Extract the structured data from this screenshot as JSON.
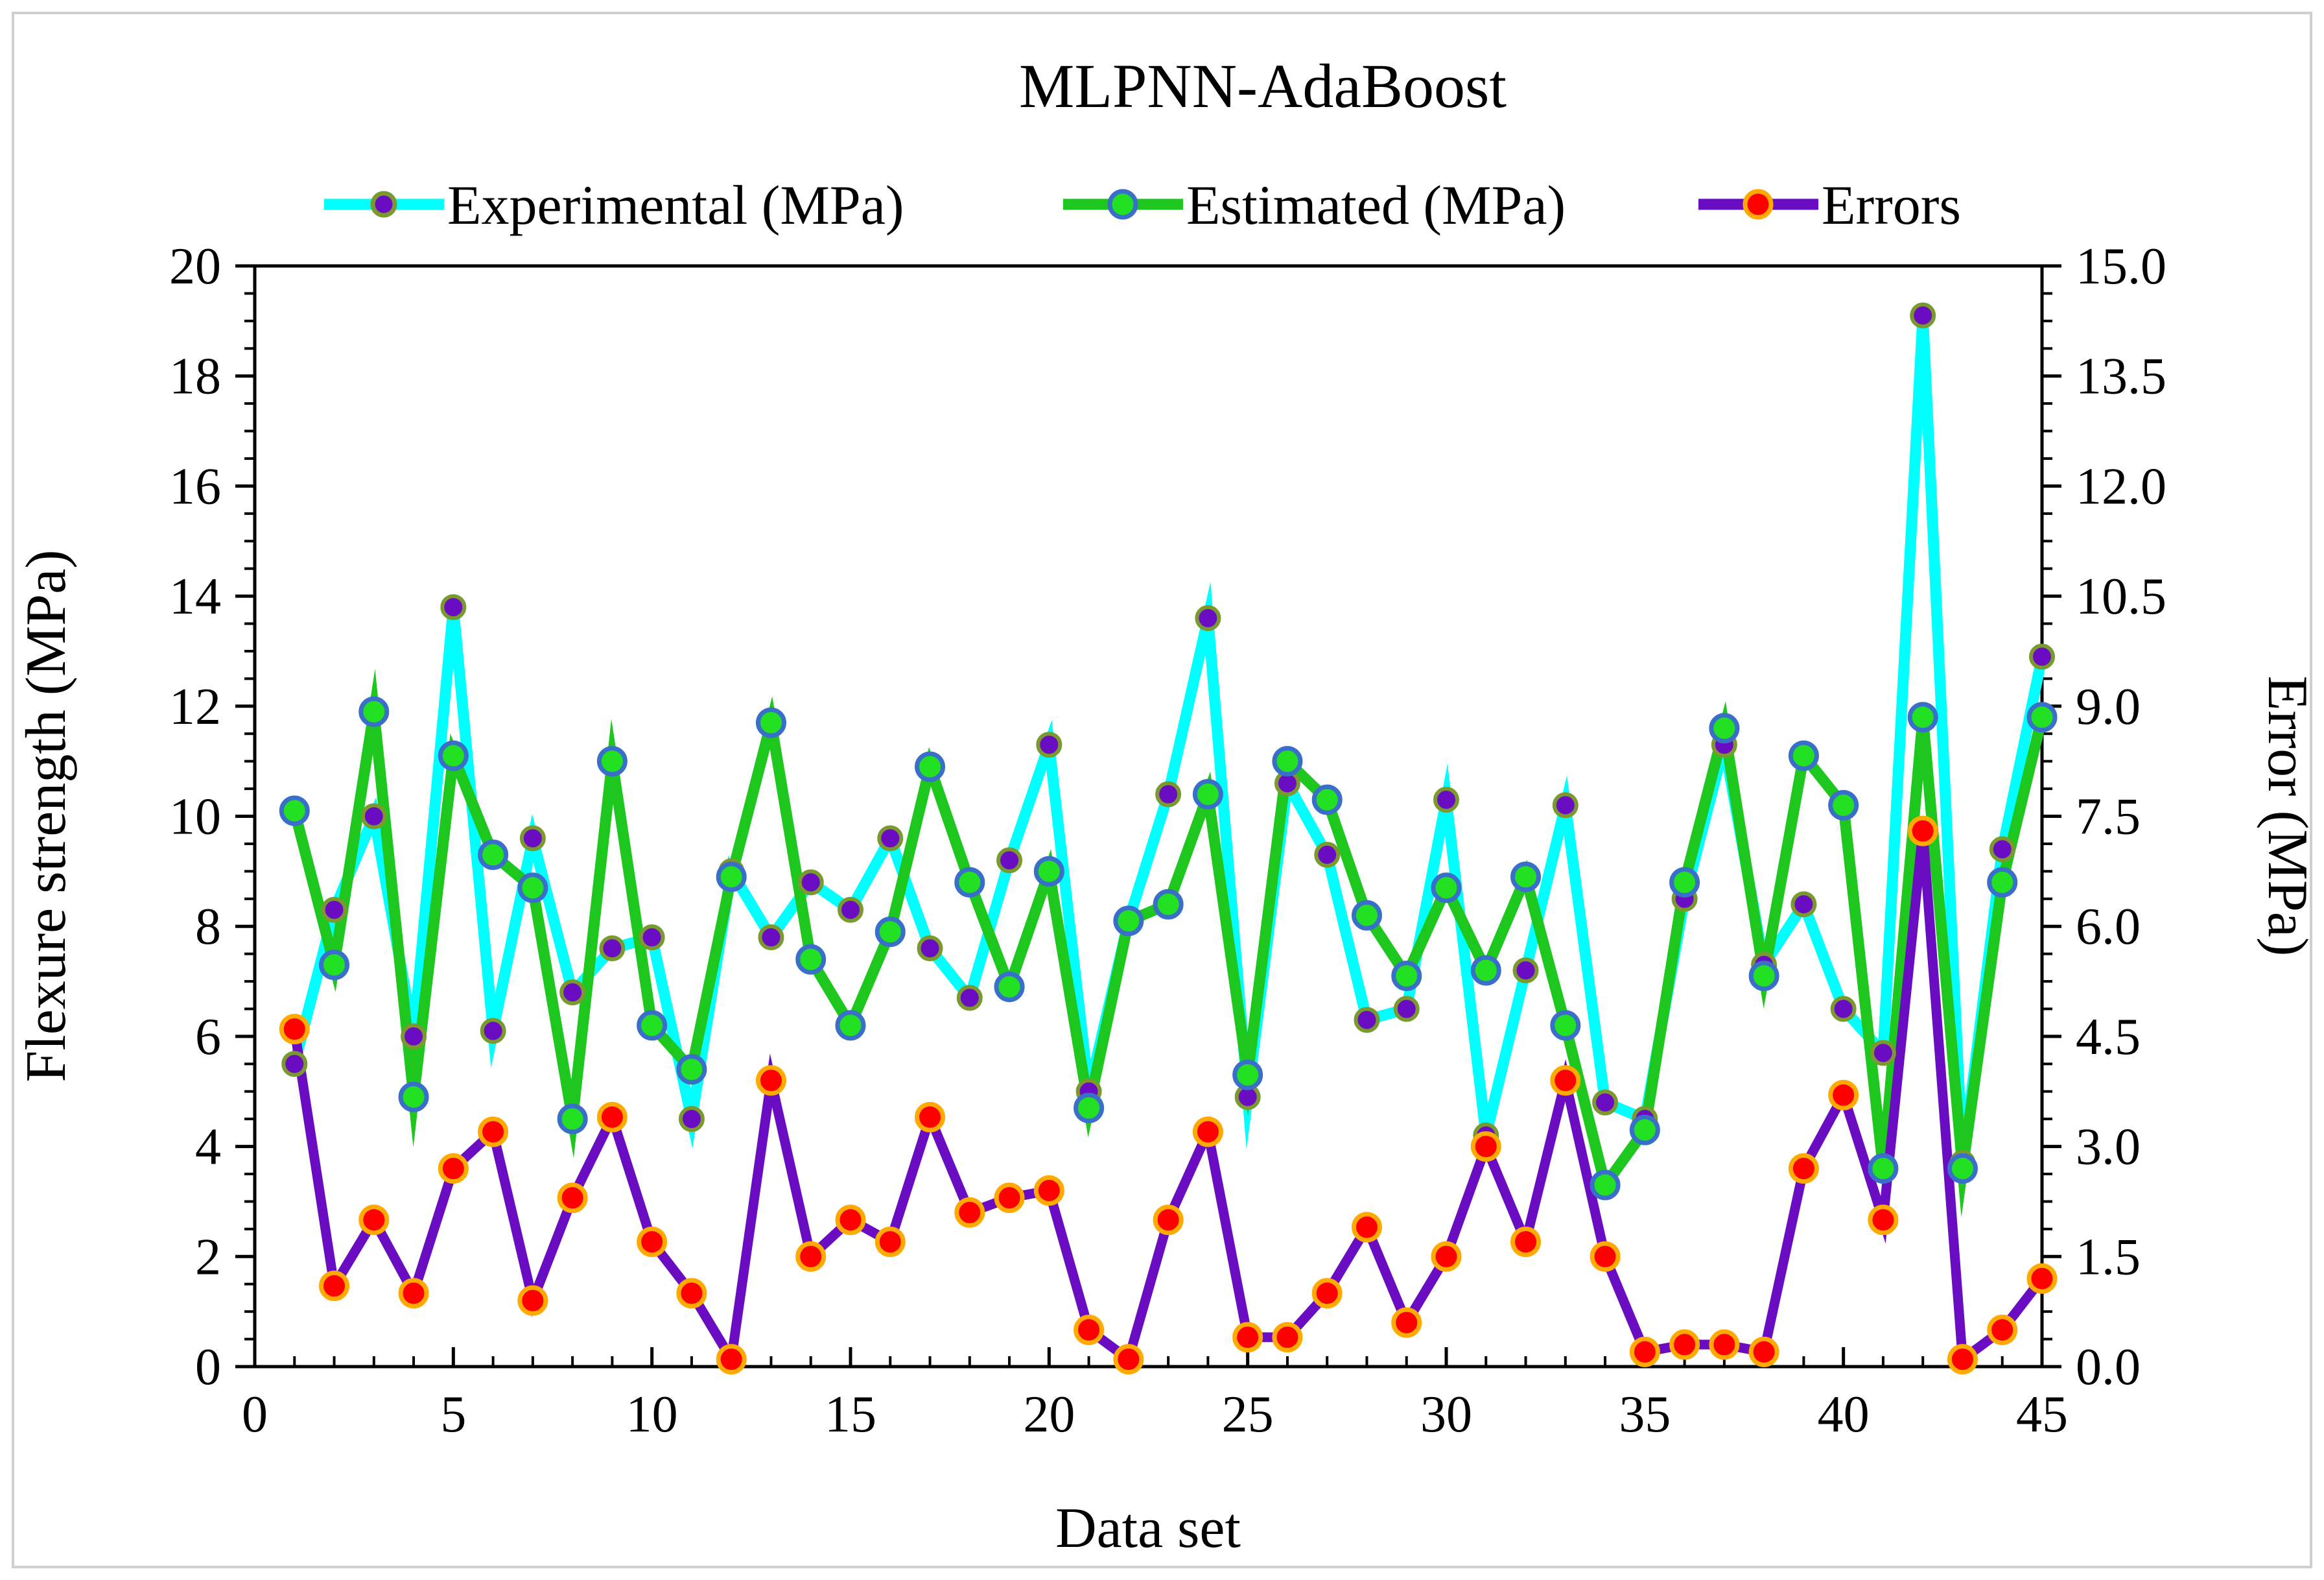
{
  "chart_data": {
    "type": "line",
    "title": "MLPNN-AdaBoost",
    "xlabel": "Data set",
    "ylabel": "Flexure strength (MPa)",
    "y2label": "Error (MPa)",
    "xlim": [
      0,
      45
    ],
    "ylim": [
      0,
      20
    ],
    "y2lim": [
      0,
      15
    ],
    "x_ticks": [
      "0",
      "5",
      "10",
      "15",
      "20",
      "25",
      "30",
      "35",
      "40",
      "45"
    ],
    "y_ticks": [
      "0",
      "2",
      "4",
      "6",
      "8",
      "10",
      "12",
      "14",
      "16",
      "18",
      "20"
    ],
    "y2_ticks": [
      "0.0",
      "1.5",
      "3.0",
      "4.5",
      "6.0",
      "7.5",
      "9.0",
      "10.5",
      "12.0",
      "13.5",
      "15.0"
    ],
    "legend_position": "top",
    "x": [
      1,
      2,
      3,
      4,
      5,
      6,
      7,
      8,
      9,
      10,
      11,
      12,
      13,
      14,
      15,
      16,
      17,
      18,
      19,
      20,
      21,
      22,
      23,
      24,
      25,
      26,
      27,
      28,
      29,
      30,
      31,
      32,
      33,
      34,
      35,
      36,
      37,
      38,
      39,
      40,
      41,
      42,
      43,
      44,
      45
    ],
    "series": [
      {
        "name": "Experimental (MPa)",
        "axis": "left",
        "color": "#00ffff",
        "marker_fill": "#6a0dc2",
        "marker_edge": "#7a9a30",
        "values": [
          5.5,
          8.3,
          10.0,
          6.0,
          13.8,
          6.1,
          9.6,
          6.8,
          7.6,
          7.8,
          4.5,
          9.0,
          7.8,
          8.8,
          8.3,
          9.6,
          7.6,
          6.7,
          9.2,
          11.3,
          5.0,
          8.1,
          10.4,
          13.6,
          4.9,
          10.6,
          9.3,
          6.3,
          6.5,
          10.3,
          4.2,
          7.2,
          10.2,
          4.8,
          4.5,
          8.5,
          11.3,
          7.3,
          8.4,
          6.5,
          5.7,
          19.1,
          3.7,
          9.4,
          12.9
        ]
      },
      {
        "name": "Estimated (MPa)",
        "axis": "left",
        "color": "#1dc71d",
        "marker_fill": "#22e022",
        "marker_edge": "#3a6fc9",
        "values": [
          10.1,
          7.3,
          11.9,
          4.9,
          11.1,
          9.3,
          8.7,
          4.5,
          11.0,
          6.2,
          5.4,
          8.9,
          11.7,
          7.4,
          6.2,
          7.9,
          10.9,
          8.8,
          6.9,
          9.0,
          4.7,
          8.1,
          8.4,
          10.4,
          5.3,
          11.0,
          10.3,
          8.2,
          7.1,
          8.7,
          7.2,
          8.9,
          6.2,
          3.3,
          4.3,
          8.8,
          11.6,
          7.1,
          11.1,
          10.2,
          3.6,
          11.8,
          3.6,
          8.8,
          11.8
        ]
      },
      {
        "name": "Errors",
        "axis": "right",
        "color": "#6a0dc2",
        "marker_fill": "#ff0000",
        "marker_edge": "#ffaa00",
        "values": [
          4.6,
          1.1,
          2.0,
          1.0,
          2.7,
          3.2,
          0.9,
          2.3,
          3.4,
          1.7,
          1.0,
          0.1,
          3.9,
          1.5,
          2.0,
          1.7,
          3.4,
          2.1,
          2.3,
          2.4,
          0.5,
          0.1,
          2.0,
          3.2,
          0.4,
          0.4,
          1.0,
          1.9,
          0.6,
          1.5,
          3.0,
          1.7,
          3.9,
          1.5,
          0.2,
          0.3,
          0.3,
          0.2,
          2.7,
          3.7,
          2.0,
          7.3,
          0.1,
          0.5,
          1.2
        ]
      }
    ]
  }
}
